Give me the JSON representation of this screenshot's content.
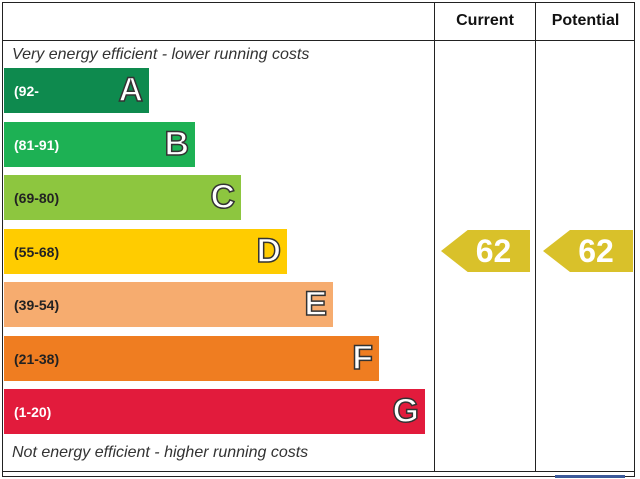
{
  "columns": {
    "current": "Current",
    "potential": "Potential"
  },
  "captions": {
    "top": "Very energy efficient - lower running costs",
    "bottom": "Not energy efficient - higher running costs"
  },
  "chart_data": {
    "type": "bar",
    "categories": [
      "A",
      "B",
      "C",
      "D",
      "E",
      "F",
      "G"
    ],
    "ranges": [
      "(92-",
      "(81-91)",
      "(69-80)",
      "(55-68)",
      "(39-54)",
      "(21-38)",
      "(1-20)"
    ],
    "colors": [
      "#0e8a4e",
      "#1db154",
      "#8dc63f",
      "#ffcc00",
      "#f6ac6f",
      "#ef7d21",
      "#e21b3c"
    ],
    "current": {
      "value": "62",
      "band": "D",
      "color": "#d9c12a"
    },
    "potential": {
      "value": "62",
      "band": "D",
      "color": "#d9c12a"
    }
  }
}
